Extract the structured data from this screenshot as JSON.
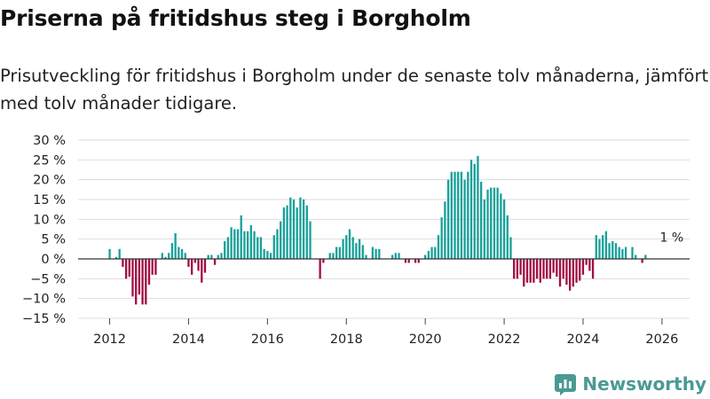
{
  "title": "Priserna på fritidshus steg i Borgholm",
  "subtitle": "Prisutveckling för fritidshus i Borgholm under de senaste tolv månaderna, jämfört med tolv månader tidigare.",
  "brand": "Newsworthy",
  "colors": {
    "positive": "#17a09a",
    "negative": "#a10d44",
    "grid": "#dddddd",
    "axis": "#333333",
    "brand": "#4a9a94"
  },
  "chart_data": {
    "type": "bar",
    "title": "Priserna på fritidshus steg i Borgholm",
    "xlabel": "",
    "ylabel": "",
    "ylim": [
      -15,
      30
    ],
    "xlim": [
      2011.2,
      2026.7
    ],
    "y_ticks": [
      30,
      25,
      20,
      15,
      10,
      5,
      0,
      -5,
      -10,
      -15
    ],
    "y_tick_labels": [
      "30 %",
      "25 %",
      "20 %",
      "15 %",
      "10 %",
      "5 %",
      "0 %",
      "−5 %",
      "−10 %",
      "−15 %"
    ],
    "x_ticks": [
      2012,
      2014,
      2016,
      2018,
      2020,
      2022,
      2024,
      2026
    ],
    "x_tick_labels": [
      "2012",
      "2014",
      "2016",
      "2018",
      "2020",
      "2022",
      "2024",
      "2026"
    ],
    "annotation": {
      "text": "1 %",
      "x": 2026.0,
      "y": 1
    },
    "start": 2012.0,
    "step": 0.08333,
    "values": [
      2.5,
      0,
      0.5,
      2.5,
      -2,
      -5,
      -4.5,
      -9.5,
      -11.5,
      -9,
      -11.5,
      -11.5,
      -6.5,
      -4,
      -4,
      0,
      1.5,
      0.5,
      1.5,
      4,
      6.5,
      3,
      2.5,
      1.5,
      -2,
      -4,
      -1,
      -3,
      -6,
      -3.5,
      1,
      1,
      -1.5,
      1,
      1.5,
      4.5,
      5.5,
      8,
      7.5,
      7.5,
      11,
      7,
      7,
      8.5,
      7,
      5.5,
      5.5,
      2.5,
      2,
      1.5,
      6,
      7.5,
      9.5,
      13,
      13.5,
      15.5,
      15,
      13,
      15.5,
      15,
      13.5,
      9.5,
      0,
      0,
      -5,
      -1,
      0,
      1.5,
      1.5,
      3,
      3,
      5,
      6,
      7.5,
      5.5,
      4,
      5,
      3.5,
      1,
      0,
      3,
      2.5,
      2.5,
      0,
      0,
      0,
      1,
      1.5,
      1.5,
      0,
      -1,
      -1,
      0,
      -1,
      -1,
      0,
      1,
      2,
      3,
      3,
      6,
      10.5,
      14.5,
      20,
      22,
      22,
      22,
      22,
      20,
      22,
      25,
      24,
      26,
      19.5,
      15,
      17.5,
      18,
      18,
      18,
      16.5,
      15,
      11,
      5.5,
      -5,
      -5,
      -4,
      -7,
      -6,
      -6,
      -6,
      -5,
      -6,
      -5,
      -5,
      -5,
      -3.5,
      -4.5,
      -7,
      -5,
      -6.5,
      -8,
      -7,
      -6,
      -5.5,
      -4,
      -1.5,
      -3,
      -5,
      6,
      5,
      6,
      7,
      4,
      4.5,
      4,
      3,
      2.5,
      3,
      0,
      3,
      1,
      0,
      -1,
      1
    ]
  }
}
